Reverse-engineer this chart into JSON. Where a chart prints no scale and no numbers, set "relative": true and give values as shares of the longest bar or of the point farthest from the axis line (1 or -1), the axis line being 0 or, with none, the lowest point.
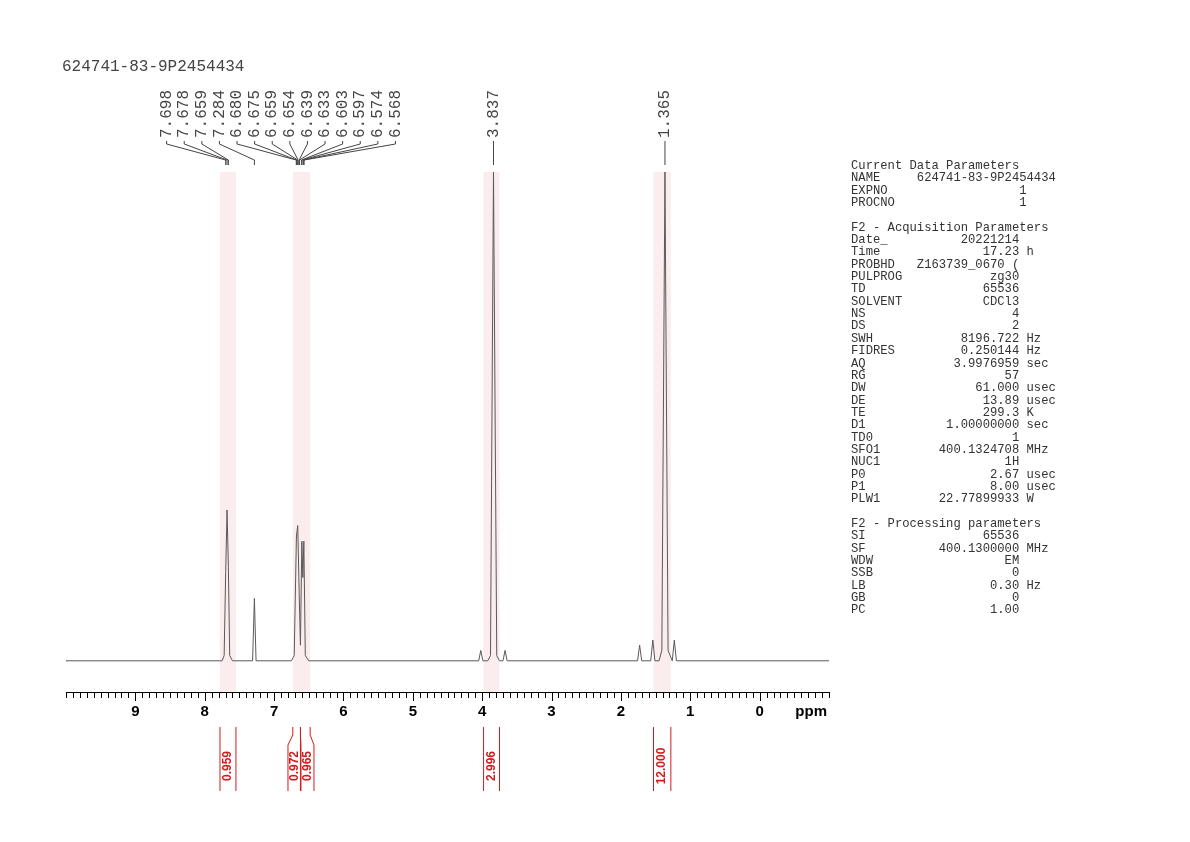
{
  "chart_data": [
    {
      "type": "line",
      "title": "624741-83-9P2454434",
      "xlabel": "ppm",
      "relative": true,
      "marker": "none",
      "series": [
        {
          "color": "#5a5a5a",
          "x": [
            10,
            7.75,
            7.72,
            7.698,
            7.678,
            7.659,
            7.64,
            7.6,
            7.31,
            7.284,
            7.26,
            6.75,
            6.71,
            6.678,
            6.659,
            6.638,
            6.62,
            6.6,
            6.585,
            6.571,
            6.55,
            6.5,
            4.05,
            4.02,
            3.99,
            3.92,
            3.88,
            3.837,
            3.79,
            3.75,
            3.7,
            3.67,
            3.64,
            1.76,
            1.73,
            1.7,
            1.57,
            1.54,
            1.51,
            1.45,
            1.41,
            1.365,
            1.32,
            1.26,
            1.23,
            1.2,
            -1
          ],
          "values": [
            0.06,
            0.06,
            0.07,
            0.23,
            0.35,
            0.24,
            0.07,
            0.06,
            0.06,
            0.18,
            0.06,
            0.06,
            0.07,
            0.3,
            0.32,
            0.19,
            0.09,
            0.29,
            0.22,
            0.29,
            0.07,
            0.06,
            0.06,
            0.08,
            0.06,
            0.06,
            0.07,
            1,
            0.07,
            0.06,
            0.06,
            0.08,
            0.06,
            0.06,
            0.09,
            0.06,
            0.06,
            0.1,
            0.06,
            0.06,
            0.08,
            1,
            0.08,
            0.06,
            0.1,
            0.06,
            0.06
          ]
        }
      ],
      "xlim": [
        10,
        -1
      ],
      "xticks": [
        {
          "value": 10,
          "label": null
        },
        {
          "value": 9.9,
          "label": null
        },
        {
          "value": 9.8,
          "label": null
        },
        {
          "value": 9.7,
          "label": null
        },
        {
          "value": 9.6,
          "label": null
        },
        {
          "value": 9.5,
          "label": null
        },
        {
          "value": 9.4,
          "label": null
        },
        {
          "value": 9.3,
          "label": null
        },
        {
          "value": 9.2,
          "label": null
        },
        {
          "value": 9.1,
          "label": null
        },
        9,
        {
          "value": 8.9,
          "label": null
        },
        {
          "value": 8.8,
          "label": null
        },
        {
          "value": 8.7,
          "label": null
        },
        {
          "value": 8.6,
          "label": null
        },
        {
          "value": 8.5,
          "label": null
        },
        {
          "value": 8.4,
          "label": null
        },
        {
          "value": 8.3,
          "label": null
        },
        {
          "value": 8.2,
          "label": null
        },
        {
          "value": 8.1,
          "label": null
        },
        8,
        {
          "value": 7.9,
          "label": null
        },
        {
          "value": 7.8,
          "label": null
        },
        {
          "value": 7.7,
          "label": null
        },
        {
          "value": 7.6,
          "label": null
        },
        {
          "value": 7.5,
          "label": null
        },
        {
          "value": 7.4,
          "label": null
        },
        {
          "value": 7.3,
          "label": null
        },
        {
          "value": 7.2,
          "label": null
        },
        {
          "value": 7.1,
          "label": null
        },
        7,
        {
          "value": 6.9,
          "label": null
        },
        {
          "value": 6.8,
          "label": null
        },
        {
          "value": 6.7,
          "label": null
        },
        {
          "value": 6.6,
          "label": null
        },
        {
          "value": 6.5,
          "label": null
        },
        {
          "value": 6.4,
          "label": null
        },
        {
          "value": 6.3,
          "label": null
        },
        {
          "value": 6.2,
          "label": null
        },
        {
          "value": 6.1,
          "label": null
        },
        6,
        {
          "value": 5.9,
          "label": null
        },
        {
          "value": 5.8,
          "label": null
        },
        {
          "value": 5.7,
          "label": null
        },
        {
          "value": 5.6,
          "label": null
        },
        {
          "value": 5.5,
          "label": null
        },
        {
          "value": 5.4,
          "label": null
        },
        {
          "value": 5.3,
          "label": null
        },
        {
          "value": 5.2,
          "label": null
        },
        {
          "value": 5.1,
          "label": null
        },
        5,
        {
          "value": 4.9,
          "label": null
        },
        {
          "value": 4.8,
          "label": null
        },
        {
          "value": 4.7,
          "label": null
        },
        {
          "value": 4.6,
          "label": null
        },
        {
          "value": 4.5,
          "label": null
        },
        {
          "value": 4.4,
          "label": null
        },
        {
          "value": 4.3,
          "label": null
        },
        {
          "value": 4.2,
          "label": null
        },
        {
          "value": 4.1,
          "label": null
        },
        4,
        {
          "value": 3.9,
          "label": null
        },
        {
          "value": 3.8,
          "label": null
        },
        {
          "value": 3.7,
          "label": null
        },
        {
          "value": 3.6,
          "label": null
        },
        {
          "value": 3.5,
          "label": null
        },
        {
          "value": 3.4,
          "label": null
        },
        {
          "value": 3.3,
          "label": null
        },
        {
          "value": 3.2,
          "label": null
        },
        {
          "value": 3.1,
          "label": null
        },
        3,
        {
          "value": 2.9,
          "label": null
        },
        {
          "value": 2.8,
          "label": null
        },
        {
          "value": 2.7,
          "label": null
        },
        {
          "value": 2.6,
          "label": null
        },
        {
          "value": 2.5,
          "label": null
        },
        {
          "value": 2.4,
          "label": null
        },
        {
          "value": 2.3,
          "label": null
        },
        {
          "value": 2.2,
          "label": null
        },
        {
          "value": 2.1,
          "label": null
        },
        2,
        {
          "value": 1.9,
          "label": null
        },
        {
          "value": 1.8,
          "label": null
        },
        {
          "value": 1.7,
          "label": null
        },
        {
          "value": 1.6,
          "label": null
        },
        {
          "value": 1.5,
          "label": null
        },
        {
          "value": 1.4,
          "label": null
        },
        {
          "value": 1.3,
          "label": null
        },
        {
          "value": 1.2,
          "label": null
        },
        {
          "value": 1.1,
          "label": null
        },
        1,
        {
          "value": 0.9,
          "label": null
        },
        {
          "value": 0.8,
          "label": null
        },
        {
          "value": 0.7,
          "label": null
        },
        {
          "value": 0.6,
          "label": null
        },
        {
          "value": 0.5,
          "label": null
        },
        {
          "value": 0.4,
          "label": null
        },
        {
          "value": 0.3,
          "label": null
        },
        {
          "value": 0.2,
          "label": null
        },
        {
          "value": 0.1,
          "label": null
        },
        0,
        {
          "value": -0.1,
          "label": null
        },
        {
          "value": -0.2,
          "label": null
        },
        {
          "value": -0.3,
          "label": null
        },
        {
          "value": -0.4,
          "label": null
        },
        {
          "value": -0.5,
          "label": null
        },
        {
          "value": -0.6,
          "label": null
        },
        {
          "value": -0.7,
          "label": null
        },
        {
          "value": -0.8,
          "label": null
        },
        {
          "value": -0.9,
          "label": null
        },
        {
          "value": -1,
          "label": null
        }
      ],
      "annotations": [
        {
          "text": "7.698",
          "x": 7.698
        },
        {
          "text": "7.678",
          "x": 7.678
        },
        {
          "text": "7.659",
          "x": 7.659
        },
        {
          "text": "7.284",
          "x": 7.284
        },
        {
          "text": "6.680",
          "x": 6.68
        },
        {
          "text": "6.675",
          "x": 6.675
        },
        {
          "text": "6.659",
          "x": 6.659
        },
        {
          "text": "6.654",
          "x": 6.654
        },
        {
          "text": "6.639",
          "x": 6.639
        },
        {
          "text": "6.633",
          "x": 6.633
        },
        {
          "text": "6.603",
          "x": 6.603
        },
        {
          "text": "6.597",
          "x": 6.597
        },
        {
          "text": "6.574",
          "x": 6.574
        },
        {
          "text": "6.568",
          "x": 6.568
        },
        {
          "text": "3.837",
          "x": 3.837
        },
        {
          "text": "1.365",
          "x": 1.365
        }
      ],
      "bands": [
        {
          "axis": "x",
          "from": 7.78,
          "to": 7.55,
          "label": "0.959",
          "color": "#d01c1c"
        },
        {
          "axis": "x",
          "from": 6.73,
          "to": 6.62,
          "label": "0.972",
          "color": "#d01c1c"
        },
        {
          "axis": "x",
          "from": 6.62,
          "to": 6.48,
          "label": "0.965",
          "color": "#d01c1c"
        },
        {
          "axis": "x",
          "from": 3.98,
          "to": 3.75,
          "label": "2.996",
          "color": "#d01c1c"
        },
        {
          "axis": "x",
          "from": 1.53,
          "to": 1.28,
          "label": "12.000",
          "color": "#d01c1c"
        }
      ]
    },
    {
      "type": "other",
      "title": "Current Data Parameters",
      "annotations": [
        "NAME     624741-83-9P2454434",
        "EXPNO                  1",
        "PROCNO                 1"
      ]
    },
    {
      "type": "other",
      "title": "F2 - Acquisition Parameters",
      "annotations": [
        "Date_          20221214",
        "Time              17.23 h",
        "PROBHD   Z163739_0670 (",
        "PULPROG            zg30",
        "TD                65536",
        "SOLVENT           CDCl3",
        "NS                    4",
        "DS                    2",
        "SWH            8196.722 Hz",
        "FIDRES         0.250144 Hz",
        "AQ            3.9976959 sec",
        "RG                   57",
        "DW               61.000 usec",
        "DE                13.89 usec",
        "TE                299.3 K",
        "D1           1.00000000 sec",
        "TD0                   1",
        "SFO1        400.1324708 MHz",
        "NUC1                 1H",
        "P0                 2.67 usec",
        "P1                 8.00 usec",
        "PLW1        22.77899933 W"
      ]
    },
    {
      "type": "other",
      "title": "F2 - Processing parameters",
      "annotations": [
        "SI                65536",
        "SF          400.1300000 MHz",
        "WDW                  EM",
        "SSB                   0",
        "LB                 0.30 Hz",
        "GB                    0",
        "PC                 1.00"
      ]
    }
  ]
}
